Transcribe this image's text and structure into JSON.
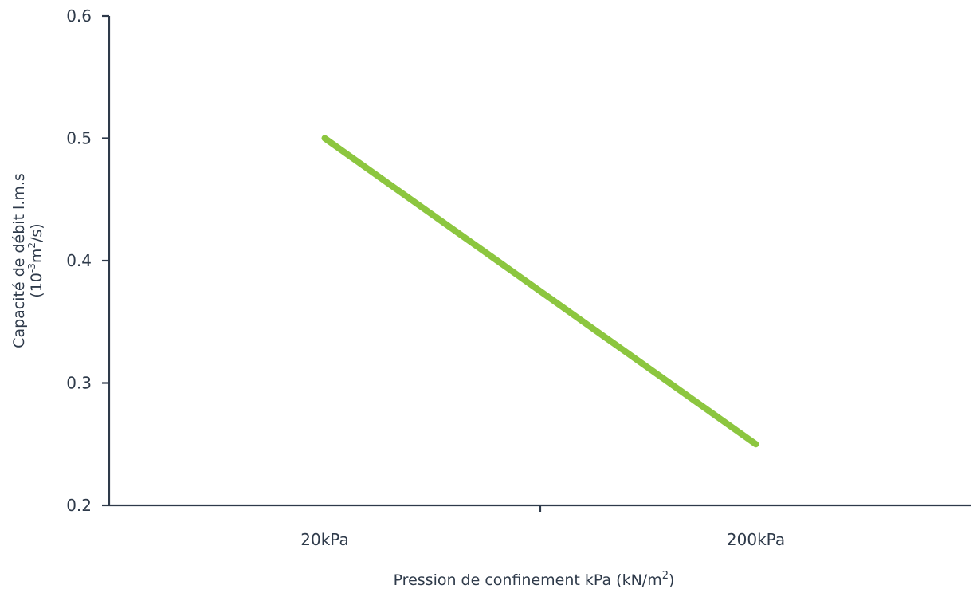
{
  "chart_data": {
    "type": "line",
    "categories": [
      "20kPa",
      "200kPa"
    ],
    "series": [
      {
        "values": [
          0.5,
          0.25
        ],
        "color": "#8cc63f"
      }
    ],
    "ylim": [
      0.2,
      0.6
    ],
    "yticks": [
      0.2,
      0.3,
      0.4,
      0.5,
      0.6
    ],
    "ytick_labels": [
      "0.2",
      "0.3",
      "0.4",
      "0.5",
      "0.6"
    ],
    "xlabel": {
      "main": "Pression de confinement kPa (kN/m",
      "sup": "2",
      "end": ")"
    },
    "ylabel": {
      "line1": "Capacité de débit l.m.s",
      "line2_prefix": "(10",
      "line2_sup1": "-3",
      "line2_mid": "m",
      "line2_sup2": "2",
      "line2_end": "/s)"
    },
    "grid": false,
    "axis_color": "#2e3a4a"
  }
}
